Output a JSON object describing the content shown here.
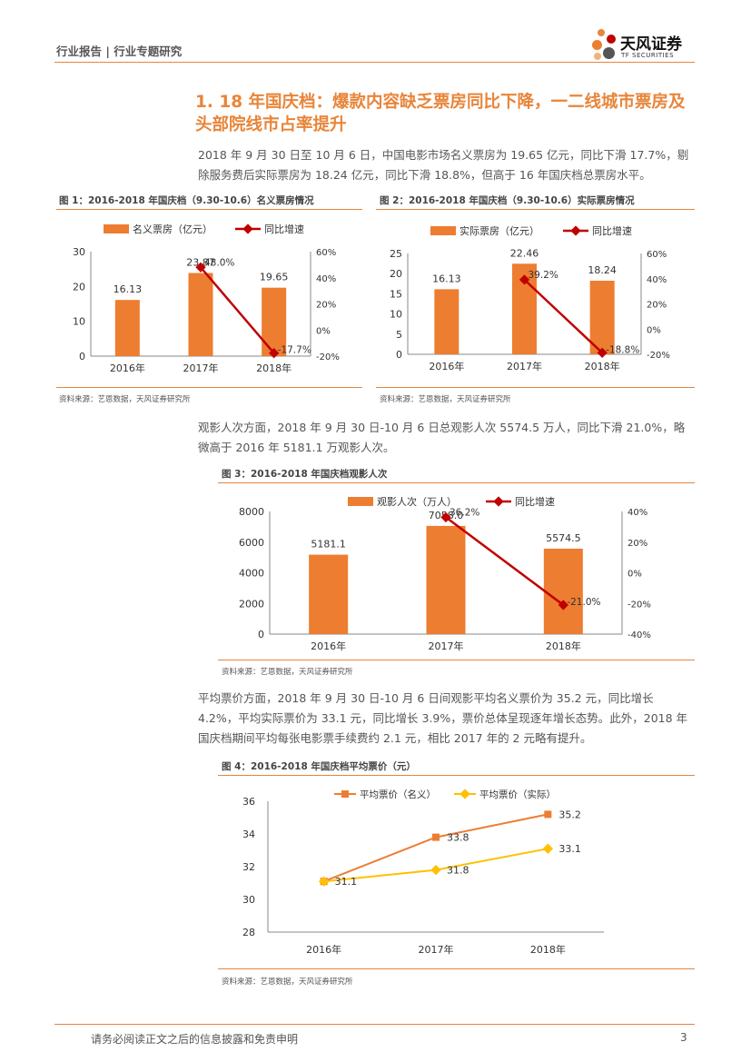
{
  "header": {
    "text": "行业报告 | 行业专题研究",
    "logo_name": "天风证券",
    "logo_en": "TF SECURITIES"
  },
  "section_title": "1. 18 年国庆档：爆款内容缺乏票房同比下降，一二线城市票房及头部院线市占率提升",
  "paragraphs": {
    "p1": "2018 年 9 月 30 日至 10 月 6 日，中国电影市场名义票房为 19.65 亿元，同比下滑 17.7%，剔除服务费后实际票房为 18.24 亿元，同比下滑 18.8%，但高于 16 年国庆档总票房水平。",
    "p2": "观影人次方面，2018 年 9 月 30 日-10 月 6 日总观影人次 5574.5 万人，同比下滑 21.0%，略微高于 2016 年 5181.1 万观影人次。",
    "p3": "平均票价方面，2018 年 9 月 30 日-10 月 6 日间观影平均名义票价为 35.2 元，同比增长 4.2%，平均实际票价为 33.1 元，同比增长 3.9%，票价总体呈现逐年增长态势。此外，2018 年国庆档期间平均每张电影票手续费约 2.1 元，相比 2017 年的 2 元略有提升。"
  },
  "source": "资料来源：艺恩数据，天风证券研究所",
  "footer": {
    "disclaimer": "请务必阅读正文之后的信息披露和免责申明",
    "page": "3"
  },
  "colors": {
    "accent": "#e8853a",
    "bar": "#ed7d31",
    "line": "#c00000",
    "line2": "#ffc000"
  },
  "chart_data": [
    {
      "type": "bar",
      "title": "图 1：2016-2018 年国庆档（9.30-10.6）名义票房情况",
      "categories": [
        "2016年",
        "2017年",
        "2018年"
      ],
      "series": [
        {
          "name": "名义票房（亿元）",
          "values": [
            16.13,
            23.87,
            19.65
          ],
          "labels": [
            "16.13",
            "23.87",
            "19.65"
          ]
        },
        {
          "name": "同比增速",
          "type": "line",
          "axis": "right",
          "values": [
            null,
            48.0,
            -17.7
          ],
          "labels": [
            "",
            "48.0%",
            "-17.7%"
          ]
        }
      ],
      "ylim": [
        0,
        30
      ],
      "yticks": [
        "0",
        "10",
        "20",
        "30"
      ],
      "y2lim": [
        -20,
        60
      ],
      "y2ticks": [
        "-20%",
        "0%",
        "20%",
        "40%",
        "60%"
      ]
    },
    {
      "type": "bar",
      "title": "图 2：2016-2018 年国庆档（9.30-10.6）实际票房情况",
      "categories": [
        "2016年",
        "2017年",
        "2018年"
      ],
      "series": [
        {
          "name": "实际票房（亿元）",
          "values": [
            16.13,
            22.46,
            18.24
          ],
          "labels": [
            "16.13",
            "22.46",
            "18.24"
          ]
        },
        {
          "name": "同比增速",
          "type": "line",
          "axis": "right",
          "values": [
            null,
            39.2,
            -18.8
          ],
          "labels": [
            "",
            "39.2%",
            "-18.8%"
          ]
        }
      ],
      "ylim": [
        0,
        25
      ],
      "yticks": [
        "0",
        "5",
        "10",
        "15",
        "20",
        "25"
      ],
      "y2lim": [
        -20,
        60
      ],
      "y2ticks": [
        "-20%",
        "0%",
        "20%",
        "40%",
        "60%"
      ]
    },
    {
      "type": "bar",
      "title": "图 3：2016-2018 年国庆档观影人次",
      "categories": [
        "2016年",
        "2017年",
        "2018年"
      ],
      "series": [
        {
          "name": "观影人次（万人）",
          "values": [
            5181.1,
            7058.0,
            5574.5
          ],
          "labels": [
            "5181.1",
            "7058.0",
            "5574.5"
          ]
        },
        {
          "name": "同比增速",
          "type": "line",
          "axis": "right",
          "values": [
            null,
            36.2,
            -21.0
          ],
          "labels": [
            "",
            "36.2%",
            "-21.0%"
          ]
        }
      ],
      "ylim": [
        0,
        8000
      ],
      "yticks": [
        "0",
        "2000",
        "4000",
        "6000",
        "8000"
      ],
      "y2lim": [
        -40,
        40
      ],
      "y2ticks": [
        "-40%",
        "-20%",
        "0%",
        "20%",
        "40%"
      ]
    },
    {
      "type": "line",
      "title": "图 4：2016-2018 年国庆档平均票价（元）",
      "categories": [
        "2016年",
        "2017年",
        "2018年"
      ],
      "series": [
        {
          "name": "平均票价（名义）",
          "values": [
            31.1,
            33.8,
            35.2
          ],
          "labels": [
            "",
            "33.8",
            "35.2"
          ]
        },
        {
          "name": "平均票价（实际）",
          "values": [
            31.1,
            31.8,
            33.1
          ],
          "labels": [
            "31.1",
            "31.8",
            "33.1"
          ]
        }
      ],
      "ylim": [
        28,
        36
      ],
      "yticks": [
        "28",
        "30",
        "32",
        "34",
        "36"
      ]
    }
  ]
}
